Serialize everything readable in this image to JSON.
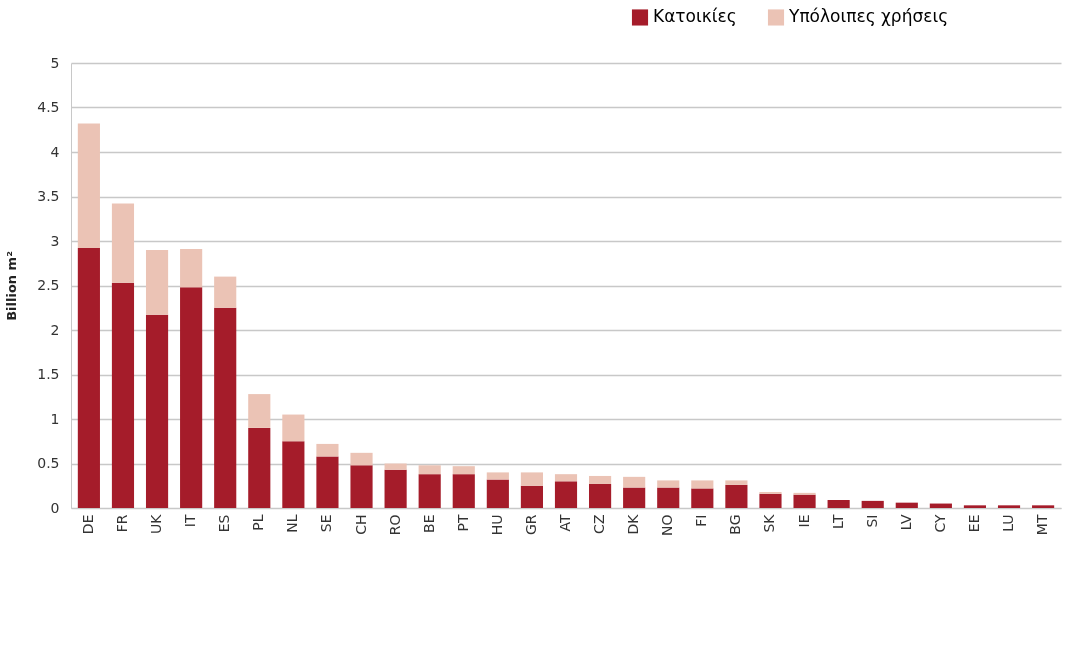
{
  "chart_data": {
    "type": "bar",
    "stacked": true,
    "ylabel": "Billion m²",
    "categories": [
      "DE",
      "FR",
      "UK",
      "IT",
      "ES",
      "PL",
      "NL",
      "SE",
      "CH",
      "RO",
      "BE",
      "PT",
      "HU",
      "GR",
      "AT",
      "CZ",
      "DK",
      "NO",
      "FI",
      "BG",
      "SK",
      "IE",
      "LT",
      "SI",
      "LV",
      "CY",
      "EE",
      "LU",
      "MT"
    ],
    "series": [
      {
        "name": "Κατοικίες",
        "color": "#a51c2a",
        "values": [
          2.92,
          2.53,
          2.17,
          2.48,
          2.25,
          0.9,
          0.75,
          0.58,
          0.48,
          0.43,
          0.38,
          0.38,
          0.32,
          0.25,
          0.3,
          0.27,
          0.23,
          0.23,
          0.22,
          0.26,
          0.16,
          0.15,
          0.09,
          0.08,
          0.06,
          0.05,
          0.03,
          0.03,
          0.03
        ]
      },
      {
        "name": "Υπόλοιπες χρήσεις",
        "color": "#ebc3b5",
        "values": [
          1.4,
          0.89,
          0.73,
          0.43,
          0.35,
          0.38,
          0.3,
          0.14,
          0.14,
          0.07,
          0.1,
          0.09,
          0.08,
          0.15,
          0.08,
          0.09,
          0.12,
          0.08,
          0.09,
          0.05,
          0.02,
          0.02,
          0,
          0,
          0,
          0,
          0,
          0,
          0
        ]
      }
    ],
    "ylim": [
      0,
      5
    ],
    "yticks": [
      0,
      0.5,
      1,
      1.5,
      2,
      2.5,
      3,
      3.5,
      4,
      4.5,
      5
    ],
    "grid": "y",
    "legend": "top right"
  }
}
